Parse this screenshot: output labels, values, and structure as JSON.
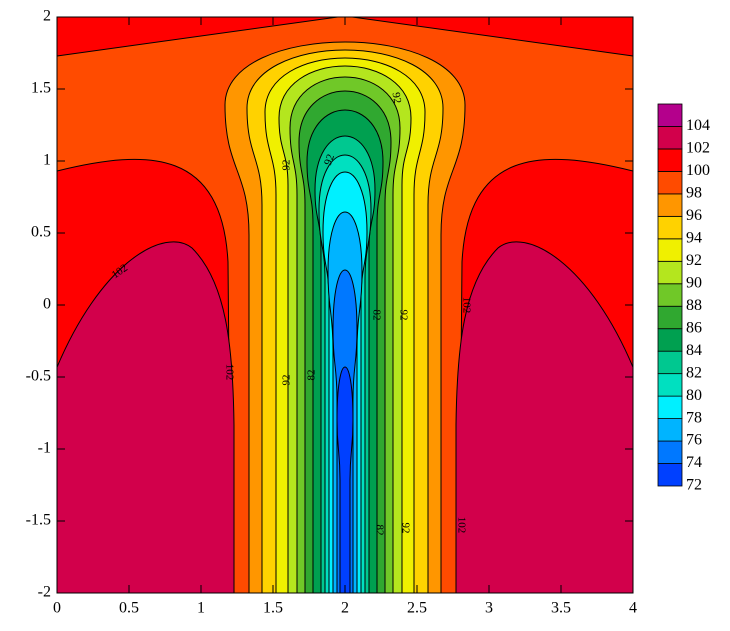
{
  "chart_data": {
    "type": "contour",
    "xlim": [
      0,
      4
    ],
    "ylim": [
      -2,
      2
    ],
    "xticks": [
      0,
      0.5,
      1,
      1.5,
      2,
      2.5,
      3,
      3.5,
      4
    ],
    "yticks": [
      -2,
      -1.5,
      -1,
      -0.5,
      0,
      0.5,
      1,
      1.5,
      2
    ],
    "levels": [
      72,
      74,
      76,
      78,
      80,
      82,
      84,
      86,
      88,
      90,
      92,
      94,
      96,
      98,
      100,
      102,
      104
    ],
    "colors": [
      "#0000ff",
      "#0040ff",
      "#0078ff",
      "#00b4ff",
      "#00f0ff",
      "#00e0c0",
      "#00c890",
      "#00a050",
      "#30a830",
      "#70c828",
      "#b4e61e",
      "#f0f000",
      "#ffd200",
      "#ff9600",
      "#ff4b00",
      "#ff0000",
      "#d2004b",
      "#b4008c",
      "#a000c8"
    ],
    "contour_labels": [
      102,
      102,
      102,
      102,
      92,
      92,
      92,
      92,
      92,
      92,
      82,
      82,
      82
    ]
  }
}
